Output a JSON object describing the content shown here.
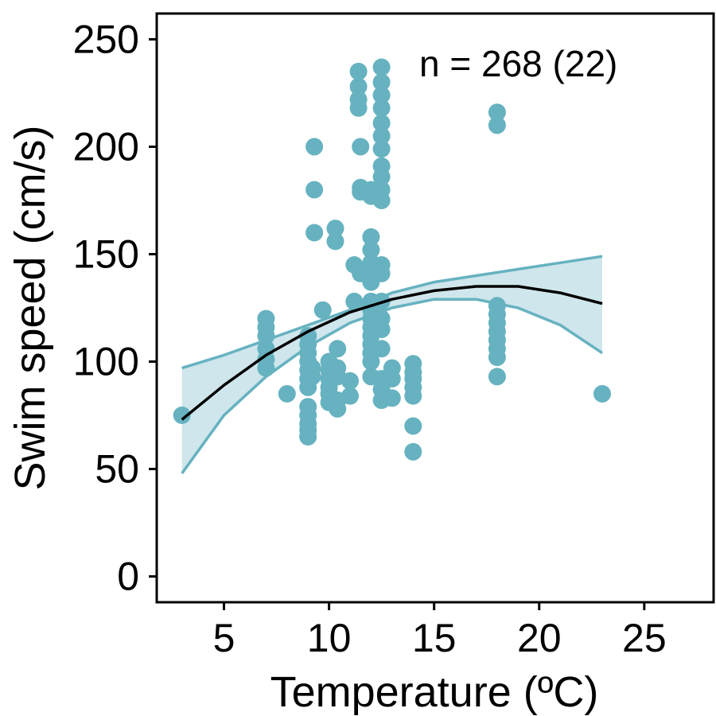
{
  "chart_data": {
    "type": "scatter",
    "xlabel": "Temperature (ºC)",
    "ylabel": "Swim speed (cm/s)",
    "xlim": [
      1.8,
      28.3
    ],
    "ylim": [
      -12,
      262
    ],
    "xticks": [
      5,
      10,
      15,
      20,
      25
    ],
    "yticks": [
      0,
      50,
      100,
      150,
      200,
      250
    ],
    "annotation": "n = 268 (22)",
    "grid": false,
    "colors": {
      "points": "#66b2c0",
      "band": "#cfe6ec",
      "band_edge": "#66b2c0",
      "fit": "#000000"
    },
    "points": [
      [
        3,
        75
      ],
      [
        7,
        120
      ],
      [
        7,
        116
      ],
      [
        7,
        112
      ],
      [
        7,
        106
      ],
      [
        7,
        101
      ],
      [
        7,
        97
      ],
      [
        8,
        85
      ],
      [
        9,
        112
      ],
      [
        9,
        108
      ],
      [
        9,
        104
      ],
      [
        9,
        100
      ],
      [
        9,
        96
      ],
      [
        9,
        92
      ],
      [
        9,
        88
      ],
      [
        9,
        79
      ],
      [
        9,
        75
      ],
      [
        9,
        71
      ],
      [
        9,
        68
      ],
      [
        9,
        65
      ],
      [
        9.2,
        97
      ],
      [
        9.2,
        93
      ],
      [
        9.3,
        200
      ],
      [
        9.3,
        180
      ],
      [
        9.3,
        160
      ],
      [
        9.7,
        124
      ],
      [
        10,
        100
      ],
      [
        10,
        96
      ],
      [
        10,
        92
      ],
      [
        10,
        88
      ],
      [
        10,
        85
      ],
      [
        10,
        81
      ],
      [
        10.3,
        162
      ],
      [
        10.3,
        156
      ],
      [
        10.4,
        106
      ],
      [
        10.4,
        97
      ],
      [
        10.4,
        93
      ],
      [
        10.4,
        82
      ],
      [
        10.4,
        78
      ],
      [
        11,
        91
      ],
      [
        11,
        84
      ],
      [
        11.2,
        145
      ],
      [
        11.2,
        128
      ],
      [
        11.4,
        235
      ],
      [
        11.4,
        228
      ],
      [
        11.4,
        222
      ],
      [
        11.4,
        218
      ],
      [
        11.5,
        200
      ],
      [
        11.5,
        181
      ],
      [
        11.5,
        179
      ],
      [
        11.5,
        141
      ],
      [
        12,
        180
      ],
      [
        12,
        177
      ],
      [
        12,
        158
      ],
      [
        12,
        152
      ],
      [
        12,
        146
      ],
      [
        12,
        140
      ],
      [
        12,
        137
      ],
      [
        12,
        128
      ],
      [
        12,
        124
      ],
      [
        12,
        120
      ],
      [
        12,
        116
      ],
      [
        12,
        112
      ],
      [
        12,
        108
      ],
      [
        12,
        104
      ],
      [
        12,
        100
      ],
      [
        12,
        93
      ],
      [
        12.5,
        237
      ],
      [
        12.5,
        230
      ],
      [
        12.5,
        224
      ],
      [
        12.5,
        218
      ],
      [
        12.5,
        211
      ],
      [
        12.5,
        205
      ],
      [
        12.5,
        199
      ],
      [
        12.5,
        191
      ],
      [
        12.5,
        186
      ],
      [
        12.5,
        180
      ],
      [
        12.5,
        175
      ],
      [
        12.5,
        145
      ],
      [
        12.5,
        141
      ],
      [
        12.5,
        128
      ],
      [
        12.5,
        120
      ],
      [
        12.5,
        115
      ],
      [
        12.5,
        106
      ],
      [
        12.5,
        92
      ],
      [
        12.5,
        87
      ],
      [
        12.5,
        82
      ],
      [
        13,
        97
      ],
      [
        13,
        92
      ],
      [
        13,
        83
      ],
      [
        14,
        99
      ],
      [
        14,
        95
      ],
      [
        14,
        92
      ],
      [
        14,
        88
      ],
      [
        14,
        84
      ],
      [
        14,
        70
      ],
      [
        14,
        58
      ],
      [
        18,
        216
      ],
      [
        18,
        210
      ],
      [
        18,
        126
      ],
      [
        18,
        122
      ],
      [
        18,
        118
      ],
      [
        18,
        114
      ],
      [
        18,
        110
      ],
      [
        18,
        106
      ],
      [
        18,
        102
      ],
      [
        18,
        93
      ],
      [
        23,
        85
      ]
    ],
    "fit_x": [
      3,
      5,
      7,
      9,
      11,
      13,
      15,
      17,
      19,
      21,
      23
    ],
    "fit": [
      73,
      89,
      103,
      114,
      123,
      129,
      133,
      135,
      135,
      132,
      127
    ],
    "ci_lower": [
      48,
      75,
      93,
      107,
      118,
      125,
      129,
      129,
      125,
      117,
      104
    ],
    "ci_upper": [
      97,
      103,
      110,
      117,
      124,
      132,
      137,
      140,
      143,
      146,
      149
    ]
  }
}
